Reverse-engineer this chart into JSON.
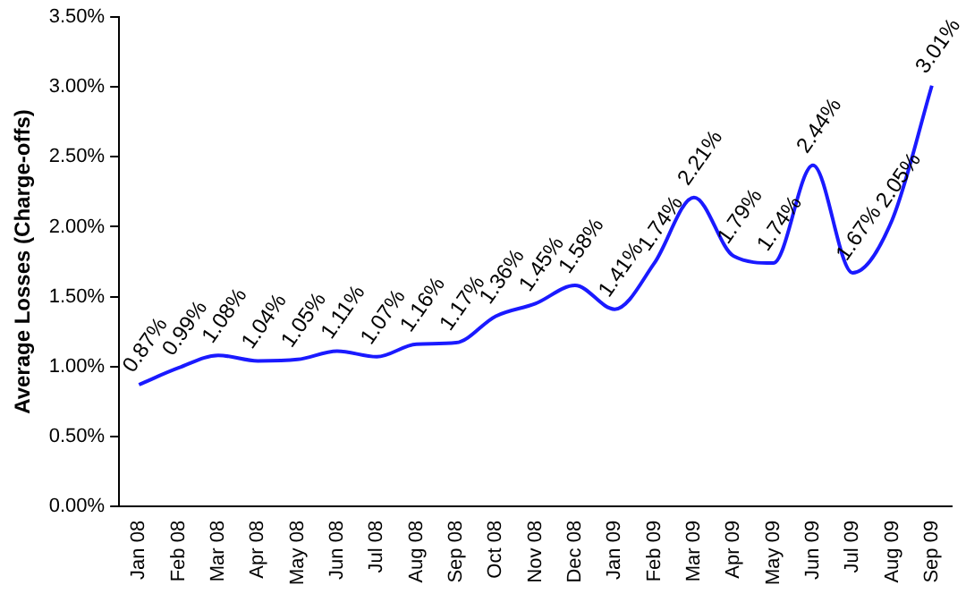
{
  "chart_data": {
    "type": "line",
    "ylabel": "Average Losses (Charge-offs)",
    "categories": [
      "Jan 08",
      "Feb 08",
      "Mar 08",
      "Apr 08",
      "May 08",
      "Jun 08",
      "Jul 08",
      "Aug 08",
      "Sep 08",
      "Oct 08",
      "Nov 08",
      "Dec 08",
      "Jan 09",
      "Feb 09",
      "Mar 09",
      "Apr 09",
      "May 09",
      "Jun 09",
      "Jul 09",
      "Aug 09",
      "Sep 09"
    ],
    "series": [
      {
        "color": "#1a1aff",
        "values": [
          0.87,
          0.99,
          1.08,
          1.04,
          1.05,
          1.11,
          1.07,
          1.16,
          1.17,
          1.36,
          1.45,
          1.58,
          1.41,
          1.74,
          2.21,
          1.79,
          1.74,
          2.44,
          1.67,
          2.05,
          3.01
        ],
        "value_labels": [
          "0.87%",
          "0.99%",
          "1.08%",
          "1.04%",
          "1.05%",
          "1.11%",
          "1.07%",
          "1.16%",
          "1.17%",
          "1.36%",
          "1.45%",
          "1.58%",
          "1.41%",
          "1.74%",
          "2.21%",
          "1.79%",
          "1.74%",
          "2.44%",
          "1.67%",
          "2.05%",
          "3.01%"
        ]
      }
    ],
    "ylim": [
      0,
      3.5
    ],
    "yticks": [
      {
        "value": 0,
        "label": "0.00%"
      },
      {
        "value": 0.5,
        "label": "0.50%"
      },
      {
        "value": 1,
        "label": "1.00%"
      },
      {
        "value": 1.5,
        "label": "1.50%"
      },
      {
        "value": 2,
        "label": "2.00%"
      },
      {
        "value": 2.5,
        "label": "2.50%"
      },
      {
        "value": 3,
        "label": "3.00%"
      },
      {
        "value": 3.5,
        "label": "3.50%"
      }
    ],
    "grid": false,
    "legend": false,
    "marker": "none",
    "line_style": "solid"
  }
}
